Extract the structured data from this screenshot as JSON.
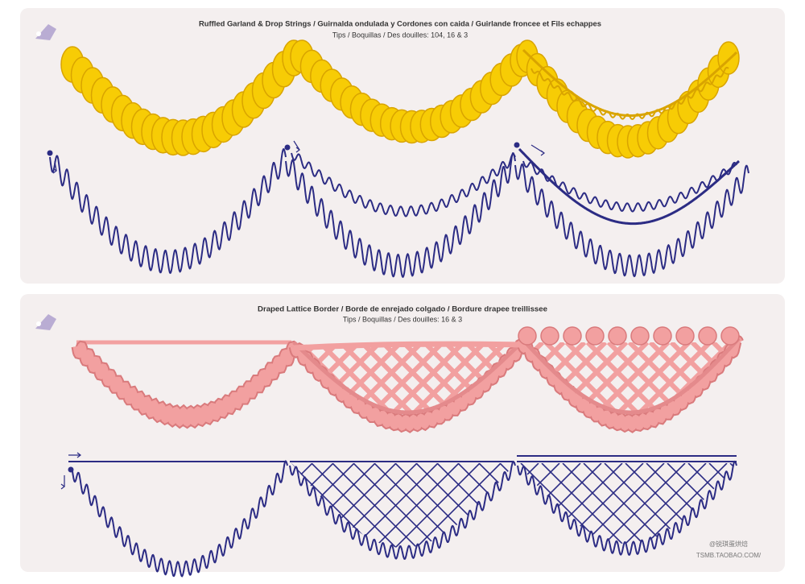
{
  "panels": [
    {
      "title": "Ruffled Garland & Drop Strings / Guirnalda ondulada  y Cordones con caida / Guirlande froncee et Fils echappes",
      "subtitle": "Tips / Boquillas / Des douilles: 104, 16 & 3"
    },
    {
      "title": "Draped Lattice Border / Borde de enrejado  colgado / Bordure drapee treillissee",
      "subtitle": "Tips / Boquillas / Des douilles: 16 & 3"
    }
  ],
  "watermark": {
    "shop": "@锐琪蛋烘焙",
    "url": "TSMB.TAOBAO.COM/"
  }
}
